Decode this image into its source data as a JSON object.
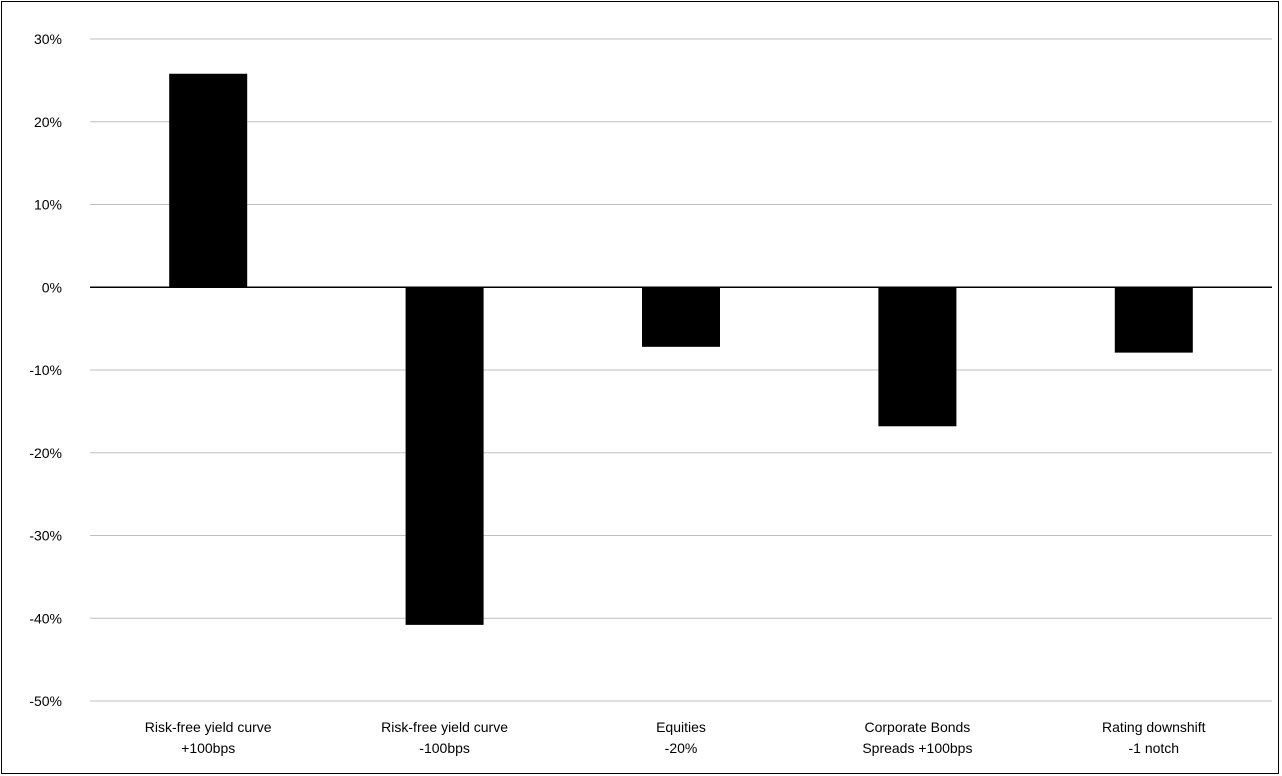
{
  "chart_data": {
    "type": "bar",
    "title": "",
    "xlabel": "",
    "ylabel": "",
    "categories": [
      [
        "Risk-free yield curve",
        "+100bps"
      ],
      [
        "Risk-free yield curve",
        "-100bps"
      ],
      [
        "Equities",
        "-20%"
      ],
      [
        "Corporate Bonds",
        "Spreads +100bps"
      ],
      [
        "Rating downshift",
        "-1 notch"
      ]
    ],
    "values": [
      25.8,
      -40.8,
      -7.2,
      -16.8,
      -7.9
    ],
    "ylim": [
      -50,
      30
    ],
    "yticks": [
      30,
      20,
      10,
      0,
      -10,
      -20,
      -30,
      -40,
      -50
    ],
    "ytick_labels": [
      "30%",
      "20%",
      "10%",
      "0%",
      "-10%",
      "-20%",
      "-30%",
      "-40%",
      "-50%"
    ],
    "grid": true,
    "legend": "none",
    "bar_color": "#000000",
    "grid_color": "#bfbfbf"
  }
}
